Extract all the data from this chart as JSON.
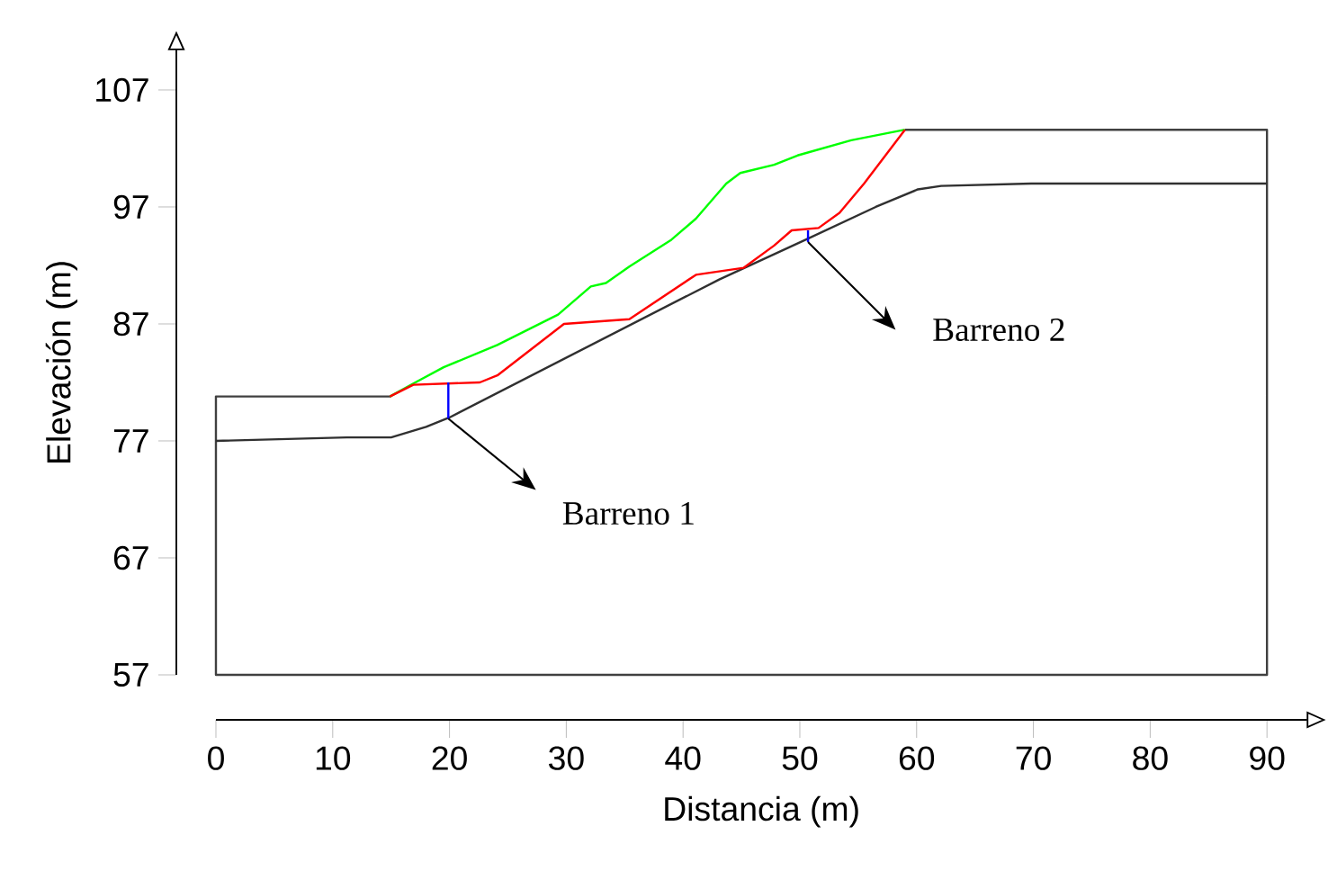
{
  "chart_data": {
    "type": "line",
    "xlabel": "Distancia (m)",
    "ylabel": "Elevación (m)",
    "xlim": [
      0,
      93.4
    ],
    "ylim": [
      57,
      110.4
    ],
    "xticks": [
      0,
      10,
      20,
      30,
      40,
      50,
      60,
      70,
      80,
      90
    ],
    "yticks": [
      57,
      67,
      77,
      87,
      97,
      107
    ],
    "grid": false,
    "series": [
      {
        "color": "#404040",
        "x": [
          15,
          0,
          0,
          90,
          90,
          59
        ],
        "values": [
          80.8,
          80.8,
          57,
          57,
          103.6,
          103.6
        ]
      },
      {
        "color": "#303030",
        "x": [
          0,
          11.2,
          15,
          18,
          20,
          43.1,
          50.5,
          56.5,
          60.1,
          62.1,
          69.8,
          90
        ],
        "values": [
          77,
          77.3,
          77.3,
          78.2,
          79,
          90.8,
          94.2,
          97,
          98.5,
          98.8,
          99,
          99
        ]
      },
      {
        "color": "#00ff00",
        "x": [
          14.9,
          16.9,
          19.5,
          24.1,
          29.3,
          32.1,
          33.4,
          35.4,
          39.0,
          41.1,
          43.7,
          44.9,
          47.8,
          49.8,
          54.4,
          59.0
        ],
        "values": [
          80.8,
          81.9,
          83.3,
          85.2,
          87.8,
          90.2,
          90.5,
          91.9,
          94.2,
          96.0,
          99.0,
          99.9,
          100.6,
          101.4,
          102.7,
          103.6
        ]
      },
      {
        "color": "#ff0000",
        "x": [
          14.9,
          16.9,
          22.6,
          24.1,
          29.8,
          35.4,
          41.1,
          45.2,
          47.8,
          49.3,
          51.6,
          53.4,
          55.5,
          59.0
        ],
        "values": [
          80.8,
          81.8,
          82.0,
          82.6,
          87.0,
          87.4,
          91.2,
          91.8,
          93.7,
          95.0,
          95.2,
          96.5,
          99.0,
          103.6
        ]
      },
      {
        "color": "#0000ff",
        "x": [
          19.9,
          19.9
        ],
        "values": [
          82.0,
          78.9
        ]
      },
      {
        "color": "#0000ff",
        "x": [
          50.7,
          50.7
        ],
        "values": [
          95.0,
          94.0
        ]
      }
    ],
    "annotations": [
      "Barreno 1",
      "Barreno 2"
    ]
  }
}
